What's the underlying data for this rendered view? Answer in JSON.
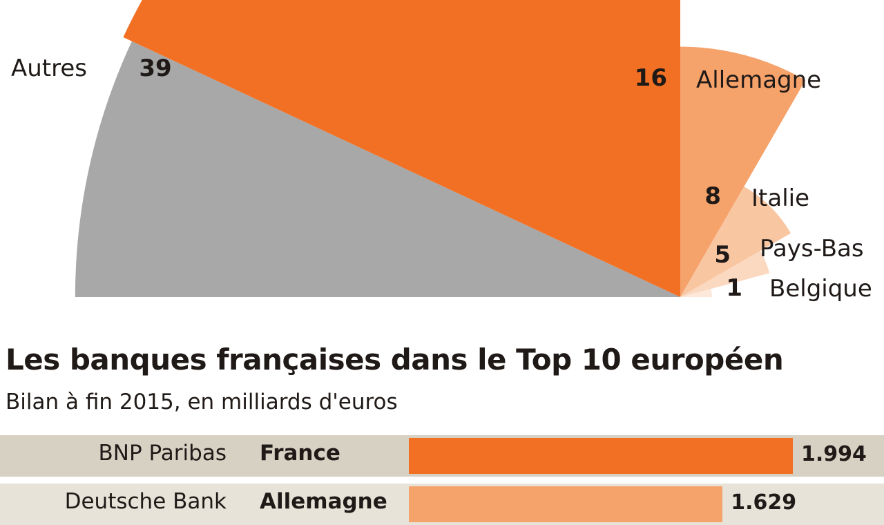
{
  "colors": {
    "gray": "#a8a8a8",
    "orange": "#f27024",
    "light_orange": "#f6a26b",
    "pale_orange": "#f9c6a2",
    "paler_orange": "#fbd8c0",
    "palest_orange": "#fde8da",
    "row_band": "#d6d1c3",
    "text": "#1f1a17"
  },
  "chart_data": [
    {
      "type": "pie",
      "variant": "polar-area-fan",
      "slices": [
        {
          "label": "Autres",
          "value": 39,
          "color": "#a8a8a8"
        },
        {
          "label": "",
          "value": null,
          "color": "#f27024"
        },
        {
          "label": "Allemagne",
          "value": 16,
          "color": "#f6a26b"
        },
        {
          "label": "Italie",
          "value": 8,
          "color": "#f9c6a2"
        },
        {
          "label": "Pays-Bas",
          "value": 5,
          "color": "#fbd8c0"
        },
        {
          "label": "Belgique",
          "value": 1,
          "color": "#fde8da"
        }
      ]
    },
    {
      "type": "bar",
      "title": "Les banques françaises dans le Top 10 européen",
      "subtitle": "Bilan à fin 2015, en milliards d'euros",
      "rows": [
        {
          "bank": "BNP Paribas",
          "country": "France",
          "value": 1994,
          "value_label": "1.994",
          "highlight": true
        },
        {
          "bank": "Deutsche Bank",
          "country": "Allemagne",
          "value": 1629,
          "value_label": "1.629",
          "highlight": false
        }
      ],
      "xlim": [
        0,
        2100
      ]
    }
  ]
}
